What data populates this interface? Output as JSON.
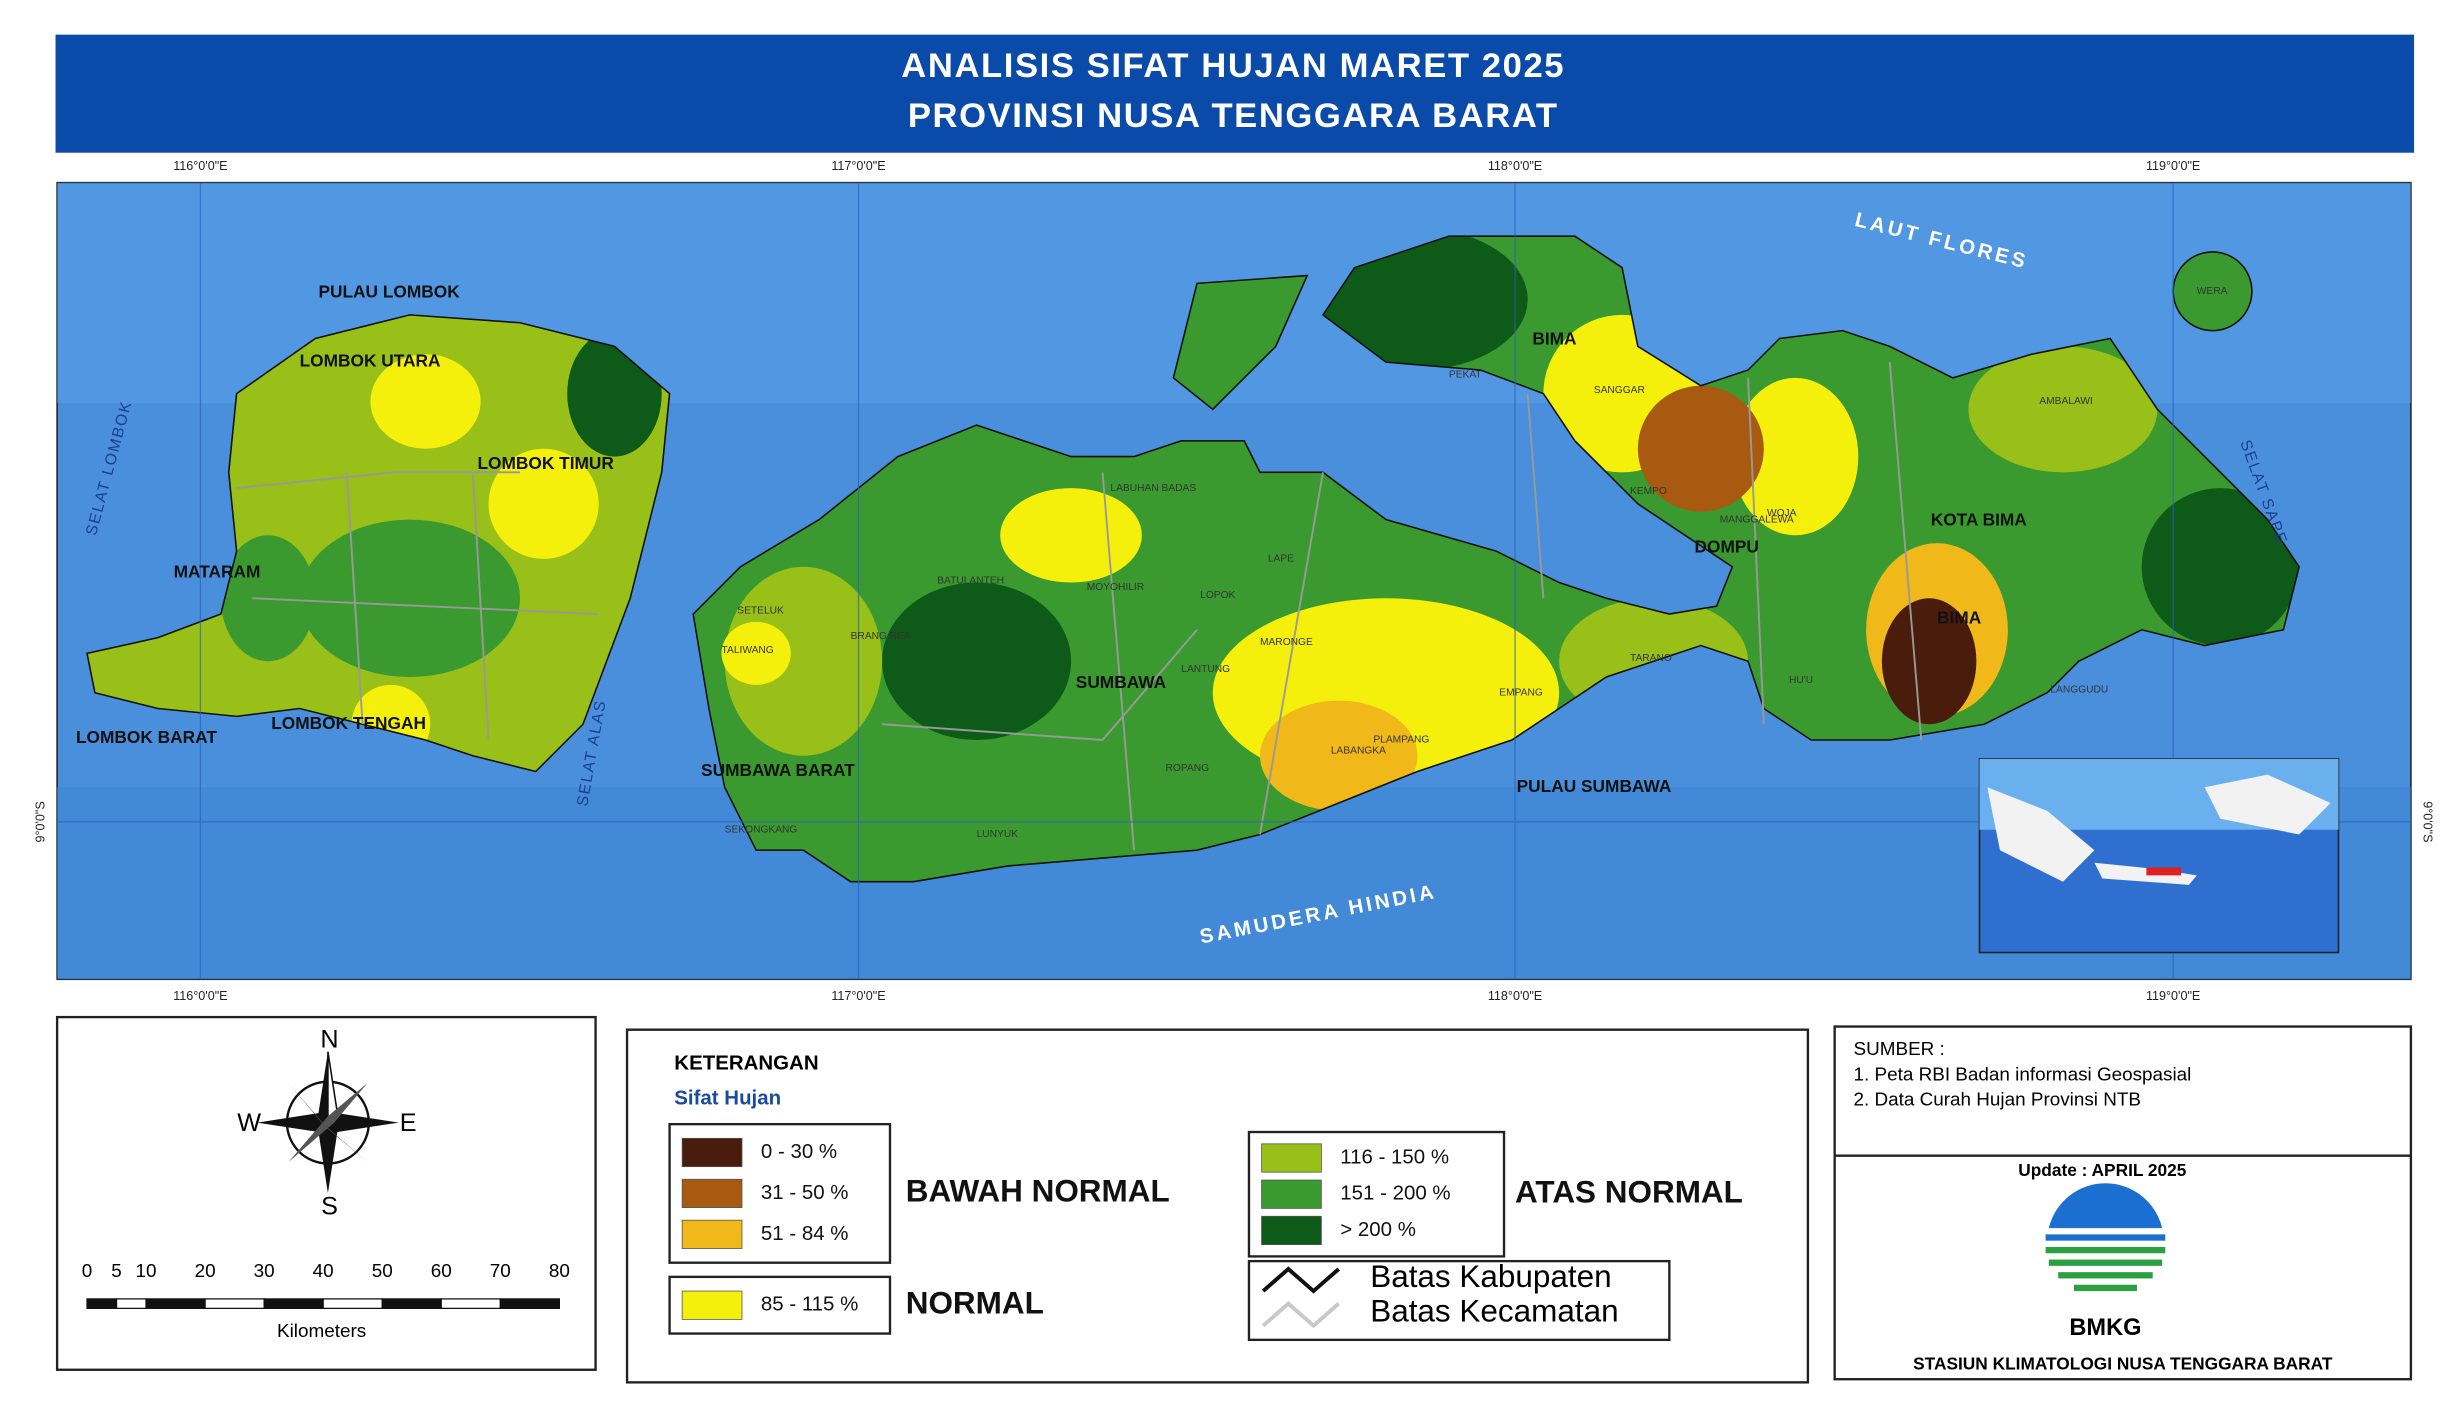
{
  "header": {
    "title_lines": [
      "ANALISIS SIFAT HUJAN MARET 2025",
      "PROVINSI NUSA TENGGARA BARAT"
    ]
  },
  "map": {
    "longitude_labels": [
      "116°0'0\"E",
      "117°0'0\"E",
      "118°0'0\"E",
      "119°0'0\"E"
    ],
    "latitude_label": "9°0'0\"S",
    "region_labels": [
      "PULAU LOMBOK",
      "LOMBOK UTARA",
      "LOMBOK TIMUR",
      "MATARAM",
      "LOMBOK TENGAH",
      "LOMBOK BARAT",
      "SUMBAWA BARAT",
      "SUMBAWA",
      "DOMPU",
      "BIMA",
      "KOTA BIMA",
      "BIMA",
      "PULAU SUMBAWA"
    ],
    "sea_labels": [
      "LAUT FLORES",
      "SAMUDERA HINDIA",
      "SELAT LOMBOK",
      "SELAT ALAS",
      "SELAT SAPE"
    ],
    "district_labels": [
      "SANGGAR",
      "PEKAT",
      "MANGGALEWA",
      "WOJA",
      "HU'U",
      "PLAMPANG",
      "EMPANG",
      "TARANO",
      "LABANGKA",
      "MARONGE",
      "LOPOK",
      "LAPE",
      "MOYOHILIR",
      "LUNYUK",
      "ROPANG",
      "TALIWANG",
      "SETELUK",
      "BRANG REA",
      "SEKONGKANG",
      "LANTUNG",
      "WERA",
      "AMBALAWI",
      "LANGGUDU",
      "LABUHAN BADAS",
      "BATULANTEH",
      "KEMPO"
    ]
  },
  "compass": {
    "north": "N",
    "south": "S",
    "east": "E",
    "west": "W"
  },
  "scale_bar": {
    "ticks": [
      0,
      5,
      10,
      20,
      30,
      40,
      50,
      60,
      70,
      80
    ],
    "unit": "Kilometers"
  },
  "legend": {
    "title": "KETERANGAN",
    "subtitle": "Sifat Hujan",
    "groups": [
      {
        "label": "BAWAH NORMAL",
        "items": [
          {
            "label": "0 - 30 %",
            "color": "#4a1c0c"
          },
          {
            "label": "31 - 50 %",
            "color": "#a85a10"
          },
          {
            "label": "51 - 84 %",
            "color": "#f0b818"
          }
        ]
      },
      {
        "label": "NORMAL",
        "items": [
          {
            "label": "85 - 115 %",
            "color": "#f4f00c"
          }
        ]
      },
      {
        "label": "ATAS NORMAL",
        "items": [
          {
            "label": "116 - 150 %",
            "color": "#98c018"
          },
          {
            "label": "151 - 200 %",
            "color": "#3a9a30"
          },
          {
            "label": "> 200 %",
            "color": "#0e5a18"
          }
        ]
      }
    ],
    "boundaries": [
      {
        "label": "Batas Kabupaten",
        "color": "#111111"
      },
      {
        "label": "Batas Kecamatan",
        "color": "#c8c8c8"
      }
    ]
  },
  "sources": {
    "title": "SUMBER :",
    "items": [
      "1. Peta RBI Badan informasi Geospasial",
      "2. Data Curah Hujan Provinsi NTB"
    ]
  },
  "update": "Update : APRIL 2025",
  "logo_text": "BMKG",
  "station": "STASIUN KLIMATOLOGI NUSA TENGGARA BARAT"
}
